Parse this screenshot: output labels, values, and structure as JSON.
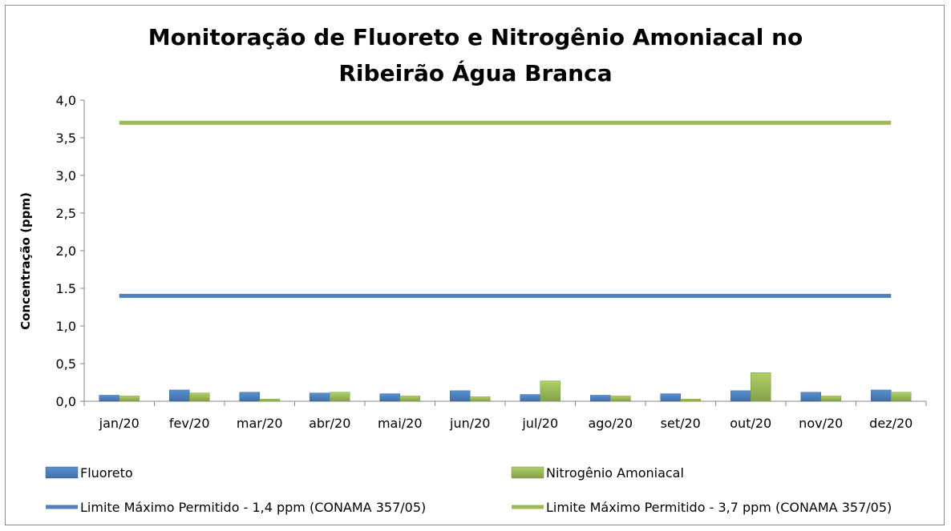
{
  "chart_data": {
    "type": "bar",
    "title_lines": [
      "Monitoração de Fluoreto e Nitrogênio Amoniacal no",
      "Ribeirão Água Branca"
    ],
    "xlabel": "",
    "ylabel": "Concentração (ppm)",
    "ylim": [
      0,
      4.0
    ],
    "yticks": [
      "0,0",
      "0,5",
      "1,0",
      "1.5",
      "2,0",
      "2,5",
      "3,0",
      "3,5",
      "4,0"
    ],
    "categories": [
      "jan/20",
      "fev/20",
      "mar/20",
      "abr/20",
      "mai/20",
      "jun/20",
      "jul/20",
      "ago/20",
      "set/20",
      "out/20",
      "nov/20",
      "dez/20"
    ],
    "series": [
      {
        "name": "Fluoreto",
        "kind": "bar",
        "color": "#4f81bd",
        "values": [
          0.08,
          0.15,
          0.12,
          0.11,
          0.1,
          0.14,
          0.09,
          0.08,
          0.1,
          0.14,
          0.12,
          0.15
        ]
      },
      {
        "name": "Nitrogênio Amoniacal",
        "kind": "bar",
        "color": "#9bbb59",
        "values": [
          0.07,
          0.11,
          0.03,
          0.12,
          0.07,
          0.06,
          0.27,
          0.07,
          0.03,
          0.38,
          0.07,
          0.12
        ]
      },
      {
        "name": "Limite Máximo Permitido - 1,4 ppm (CONAMA 357/05)",
        "kind": "line",
        "color": "#4f81bd",
        "values": [
          1.4,
          1.4,
          1.4,
          1.4,
          1.4,
          1.4,
          1.4,
          1.4,
          1.4,
          1.4,
          1.4,
          1.4
        ]
      },
      {
        "name": "Limite Máximo Permitido - 3,7 ppm (CONAMA 357/05)",
        "kind": "line",
        "color": "#9bbb59",
        "values": [
          3.7,
          3.7,
          3.7,
          3.7,
          3.7,
          3.7,
          3.7,
          3.7,
          3.7,
          3.7,
          3.7,
          3.7
        ]
      }
    ],
    "grid": false,
    "legend_position": "bottom"
  }
}
